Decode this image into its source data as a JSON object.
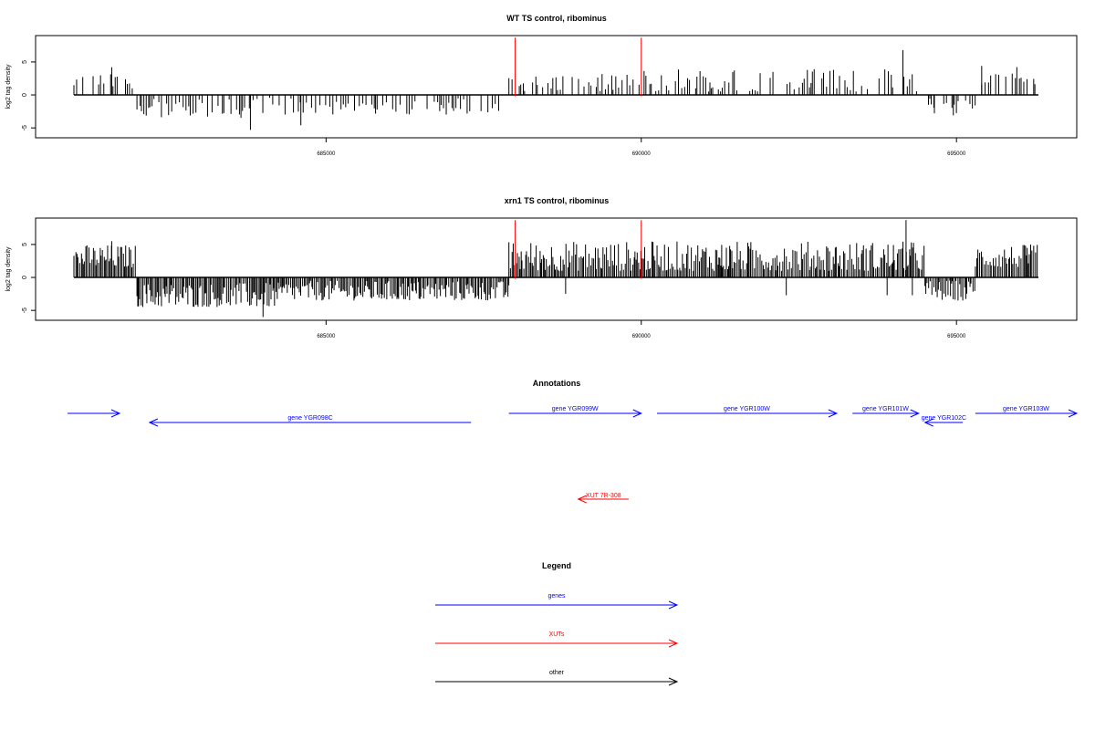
{
  "chart_data": [
    {
      "type": "bar",
      "title": "WT TS control, ribominus",
      "ylabel": "log2 tag density",
      "xlabel": "",
      "xlim": [
        680900,
        697400
      ],
      "ylim": [
        -6.5,
        9
      ],
      "xticks": [
        685000,
        690000,
        695000
      ],
      "xtick_labels": [
        "685000",
        "690000",
        "695000"
      ],
      "yticks": [
        -5,
        0,
        5
      ],
      "ytick_labels": [
        "-5",
        "0",
        "5"
      ],
      "grid": false,
      "marker_color": "#ff0000",
      "bar_color": "#000000",
      "markers": [
        688000,
        690000
      ],
      "regions": [
        {
          "start": 681000,
          "end": 682000,
          "min": 1.0,
          "max": 3.2
        },
        {
          "start": 682000,
          "end": 683800,
          "min": -3.5,
          "max": -0.6
        },
        {
          "start": 683800,
          "end": 687900,
          "min": -3.0,
          "max": -0.4
        },
        {
          "start": 687900,
          "end": 690000,
          "min": 0.6,
          "max": 3.2
        },
        {
          "start": 690000,
          "end": 694400,
          "min": 0.5,
          "max": 4.0
        },
        {
          "start": 694500,
          "end": 695300,
          "min": -2.8,
          "max": -0.4
        },
        {
          "start": 695400,
          "end": 696300,
          "min": 1.5,
          "max": 4.6
        }
      ],
      "peaks": [
        {
          "x": 681600,
          "y": 4.2
        },
        {
          "x": 683800,
          "y": -5.3
        },
        {
          "x": 684600,
          "y": -4.6
        },
        {
          "x": 694150,
          "y": 6.8
        },
        {
          "x": 694650,
          "y": -2.8
        },
        {
          "x": 694950,
          "y": -3.1
        },
        {
          "x": 695400,
          "y": 4.4
        }
      ]
    },
    {
      "type": "bar",
      "title": "xrn1 TS control, ribominus",
      "ylabel": "log2 tag density",
      "xlabel": "",
      "xlim": [
        680900,
        697400
      ],
      "ylim": [
        -6.5,
        9
      ],
      "xticks": [
        685000,
        690000,
        695000
      ],
      "xtick_labels": [
        "685000",
        "690000",
        "695000"
      ],
      "yticks": [
        -5,
        0,
        5
      ],
      "ytick_labels": [
        "-5",
        "0",
        "5"
      ],
      "grid": false,
      "marker_color": "#ff0000",
      "bar_color": "#000000",
      "markers": [
        688000,
        690000
      ],
      "regions": [
        {
          "start": 681000,
          "end": 682000,
          "min": 1.5,
          "max": 5.0
        },
        {
          "start": 682000,
          "end": 684300,
          "min": -4.5,
          "max": -0.8
        },
        {
          "start": 684300,
          "end": 687900,
          "min": -3.5,
          "max": -0.5
        },
        {
          "start": 687900,
          "end": 694500,
          "min": 1.0,
          "max": 5.5
        },
        {
          "start": 694500,
          "end": 695300,
          "min": -3.5,
          "max": -0.4
        },
        {
          "start": 695300,
          "end": 696300,
          "min": 1.5,
          "max": 5.0
        }
      ],
      "peaks": [
        {
          "x": 681600,
          "y": 5.5
        },
        {
          "x": 684000,
          "y": -6.0
        },
        {
          "x": 688800,
          "y": -2.5
        },
        {
          "x": 692300,
          "y": -2.7
        },
        {
          "x": 693900,
          "y": -2.7
        },
        {
          "x": 694200,
          "y": 8.7
        },
        {
          "x": 694300,
          "y": -2.7
        },
        {
          "x": 695100,
          "y": -3.5
        }
      ]
    }
  ],
  "annotations": {
    "title": "Annotations",
    "genes": [
      {
        "label": "gene YGR098C",
        "start": 682200,
        "end": 687300,
        "strand": "-",
        "row": 1
      },
      {
        "label": "gene YGR099W",
        "start": 687900,
        "end": 690000,
        "strand": "+",
        "row": 0
      },
      {
        "label": "gene YGR100W",
        "start": 690250,
        "end": 693100,
        "strand": "+",
        "row": 0
      },
      {
        "label": "gene YGR101W",
        "start": 693350,
        "end": 694400,
        "strand": "+",
        "row": 0
      },
      {
        "label": "gene YGR102C",
        "start": 694500,
        "end": 695100,
        "strand": "-",
        "row": 1
      },
      {
        "label": "gene YGR103W",
        "start": 695300,
        "end": 697400,
        "strand": "+",
        "row": 0
      }
    ],
    "gene_partial": {
      "label": "",
      "start": 680900,
      "end": 682200,
      "strand": "+",
      "row": 0
    },
    "xuts": [
      {
        "label": "XUT 7R-308",
        "start": 689000,
        "end": 689800,
        "strand": "-"
      }
    ],
    "colors": {
      "genes": "#0000ff",
      "xuts": "#ff0000",
      "other": "#000000"
    }
  },
  "legend": {
    "title": "Legend",
    "items": [
      {
        "label": "genes",
        "color": "#0000ff"
      },
      {
        "label": "XUTs",
        "color": "#ff0000"
      },
      {
        "label": "other",
        "color": "#000000"
      }
    ]
  }
}
